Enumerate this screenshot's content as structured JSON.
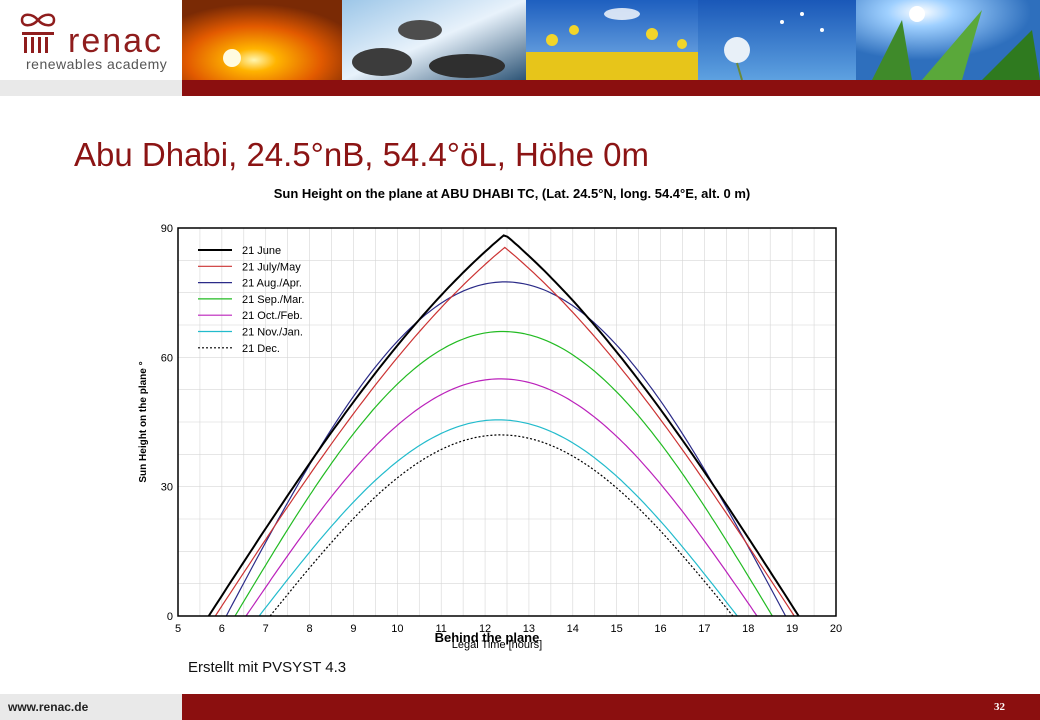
{
  "header": {
    "logo_word": "renac",
    "logo_tagline": "renewables academy",
    "logo_icon": "renac-infinity-pillar-icon",
    "photos": [
      "sunset-photo",
      "waterfall-photo",
      "rapeseed-field-photo",
      "dandelion-photo",
      "cornfield-sun-photo"
    ],
    "accent_color": "#8b0f0f"
  },
  "slide": {
    "title": "Abu Dhabi, 24.5°nB, 54.4°öL, Höhe 0m",
    "caption": "Erstellt mit PVSYST 4.3"
  },
  "footer": {
    "url": "www.renac.de",
    "page_number": "32"
  },
  "chart_data": {
    "type": "line",
    "title": "Sun Height on the plane  at  ABU DHABI TC, (Lat. 24.5°N, long. 54.4°E, alt. 0 m)",
    "xlabel": "Legal Time [hours]",
    "ylabel": "Sun Height on the plane  °",
    "annotation": "Behind the plane",
    "xlim": [
      5,
      20
    ],
    "ylim": [
      0,
      90
    ],
    "xticks": [
      5,
      6,
      7,
      8,
      9,
      10,
      11,
      12,
      13,
      14,
      15,
      16,
      17,
      18,
      19,
      20
    ],
    "yticks": [
      0,
      30,
      60,
      90
    ],
    "legend_position": "top-left",
    "grid": true,
    "series": [
      {
        "name": "21 June",
        "color": "#000000",
        "dash": "solid",
        "noon": 12.45,
        "sunrise": 5.7,
        "sunset": 19.15,
        "peak": 88.5
      },
      {
        "name": "21 July/May",
        "color": "#cc3333",
        "dash": "solid",
        "noon": 12.45,
        "sunrise": 5.85,
        "sunset": 19.05,
        "peak": 85.5
      },
      {
        "name": "21 Aug./Apr.",
        "color": "#2b2b88",
        "dash": "solid",
        "noon": 12.45,
        "sunrise": 6.1,
        "sunset": 18.85,
        "peak": 77.5
      },
      {
        "name": "21 Sep./Mar.",
        "color": "#22bb22",
        "dash": "solid",
        "noon": 12.4,
        "sunrise": 6.3,
        "sunset": 18.55,
        "peak": 66
      },
      {
        "name": "21 Oct./Feb.",
        "color": "#bb22bb",
        "dash": "solid",
        "noon": 12.35,
        "sunrise": 6.55,
        "sunset": 18.2,
        "peak": 55
      },
      {
        "name": "21 Nov./Jan.",
        "color": "#22bbcc",
        "dash": "solid",
        "noon": 12.3,
        "sunrise": 6.85,
        "sunset": 17.75,
        "peak": 45.5
      },
      {
        "name": "21 Dec.",
        "color": "#000000",
        "dash": "dotted",
        "noon": 12.35,
        "sunrise": 7.1,
        "sunset": 17.65,
        "peak": 42
      }
    ]
  }
}
